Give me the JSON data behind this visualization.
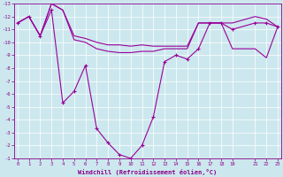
{
  "xlabel": "Windchill (Refroidissement éolien,°C)",
  "background_color": "#cce8ee",
  "grid_color": "#aad4dd",
  "line_color": "#990099",
  "xlim": [
    0,
    23
  ],
  "ylim": [
    -13,
    -1
  ],
  "x_ticks": [
    0,
    1,
    2,
    3,
    4,
    5,
    6,
    7,
    8,
    9,
    10,
    11,
    12,
    13,
    14,
    15,
    16,
    17,
    18,
    19,
    21,
    22,
    23
  ],
  "y_ticks": [
    -1,
    -2,
    -3,
    -4,
    -5,
    -6,
    -7,
    -8,
    -9,
    -10,
    -11,
    -12,
    -13
  ],
  "line1_x": [
    0,
    1,
    2,
    3,
    4,
    5,
    6,
    7,
    8,
    9,
    10,
    11,
    12,
    13,
    14,
    15,
    16,
    17,
    18,
    19,
    21,
    22,
    23
  ],
  "line1_y": [
    -11.5,
    -12.0,
    -10.5,
    -12.5,
    -5.3,
    -6.2,
    -8.2,
    -3.3,
    -2.2,
    -1.3,
    -1.0,
    -2.0,
    -4.2,
    -8.5,
    -9.0,
    -8.7,
    -9.5,
    -11.5,
    -11.5,
    -11.0,
    -11.5,
    -11.5,
    -11.2
  ],
  "line2_x": [
    0,
    1,
    2,
    3,
    4,
    5,
    6,
    7,
    8,
    9,
    10,
    11,
    12,
    13,
    14,
    15,
    16,
    17,
    18,
    19,
    21,
    22,
    23
  ],
  "line2_y": [
    -11.5,
    -12.0,
    -10.5,
    -13.0,
    -12.5,
    -10.2,
    -10.0,
    -9.5,
    -9.3,
    -9.2,
    -9.2,
    -9.3,
    -9.3,
    -9.5,
    -9.5,
    -9.5,
    -11.5,
    -11.5,
    -11.5,
    -9.5,
    -9.5,
    -8.8,
    -11.2
  ],
  "line3_x": [
    0,
    1,
    2,
    3,
    4,
    5,
    6,
    7,
    8,
    9,
    10,
    11,
    12,
    13,
    14,
    15,
    16,
    17,
    18,
    19,
    21,
    22,
    23
  ],
  "line3_y": [
    -11.5,
    -12.0,
    -10.5,
    -13.0,
    -12.5,
    -10.5,
    -10.3,
    -10.0,
    -9.8,
    -9.8,
    -9.7,
    -9.8,
    -9.7,
    -9.7,
    -9.7,
    -9.7,
    -11.5,
    -11.5,
    -11.5,
    -11.5,
    -12.0,
    -11.8,
    -11.2
  ]
}
